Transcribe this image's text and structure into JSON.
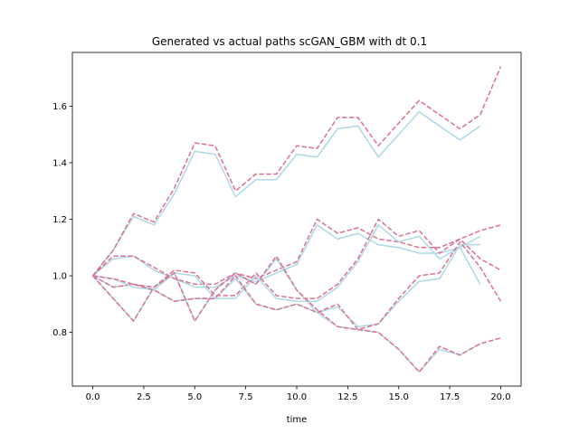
{
  "chart_data": {
    "type": "line",
    "title": "Generated vs actual paths scGAN_GBM with dt 0.1",
    "xlabel": "time",
    "ylabel": "",
    "xlim": [
      -1,
      21
    ],
    "ylim": [
      0.61,
      1.79
    ],
    "xticks": [
      0.0,
      2.5,
      5.0,
      7.5,
      10.0,
      12.5,
      15.0,
      17.5,
      20.0
    ],
    "xtick_labels": [
      "0.0",
      "2.5",
      "5.0",
      "7.5",
      "10.0",
      "12.5",
      "15.0",
      "17.5",
      "20.0"
    ],
    "yticks": [
      0.8,
      1.0,
      1.2,
      1.4,
      1.6
    ],
    "ytick_labels": [
      "0.8",
      "1.0",
      "1.2",
      "1.4",
      "1.6"
    ],
    "grid": false,
    "colors": {
      "generated": "#add8e6",
      "actual": "#db7093"
    },
    "series": [
      {
        "style": "solid",
        "group": "generated",
        "x": [
          0,
          1,
          2,
          3,
          4,
          5,
          6,
          7,
          8,
          9,
          10,
          11,
          12,
          13,
          14,
          15,
          16,
          17,
          18,
          19
        ],
        "y": [
          1.0,
          1.09,
          1.21,
          1.18,
          1.29,
          1.44,
          1.43,
          1.28,
          1.34,
          1.34,
          1.43,
          1.42,
          1.52,
          1.53,
          1.42,
          1.5,
          1.58,
          1.53,
          1.48,
          1.53
        ]
      },
      {
        "style": "dashed",
        "group": "actual",
        "x": [
          0,
          1,
          2,
          3,
          4,
          5,
          6,
          7,
          8,
          9,
          10,
          11,
          12,
          13,
          14,
          15,
          16,
          17,
          18,
          19,
          20
        ],
        "y": [
          1.0,
          1.09,
          1.22,
          1.19,
          1.31,
          1.47,
          1.46,
          1.3,
          1.36,
          1.36,
          1.46,
          1.45,
          1.56,
          1.56,
          1.46,
          1.54,
          1.62,
          1.57,
          1.52,
          1.57,
          1.74
        ]
      },
      {
        "style": "solid",
        "group": "generated",
        "x": [
          0,
          1,
          2,
          3,
          4,
          5,
          6,
          7,
          8,
          9,
          10,
          11,
          12,
          13,
          14,
          15,
          16,
          17,
          18,
          19
        ],
        "y": [
          1.0,
          1.06,
          1.07,
          1.02,
          0.99,
          0.96,
          0.96,
          1.0,
          0.98,
          1.01,
          1.04,
          1.18,
          1.13,
          1.15,
          1.11,
          1.1,
          1.08,
          1.08,
          1.1,
          0.97
        ]
      },
      {
        "style": "dashed",
        "group": "actual",
        "x": [
          0,
          1,
          2,
          3,
          4,
          5,
          6,
          7,
          8,
          9,
          10,
          11,
          12,
          13,
          14,
          15,
          16,
          17,
          18,
          19,
          20
        ],
        "y": [
          1.0,
          1.07,
          1.07,
          1.03,
          0.99,
          0.97,
          0.97,
          1.01,
          0.99,
          1.02,
          1.05,
          1.2,
          1.15,
          1.17,
          1.13,
          1.12,
          1.1,
          1.1,
          1.13,
          1.06,
          1.02
        ]
      },
      {
        "style": "solid",
        "group": "generated",
        "x": [
          0,
          1,
          2,
          3,
          4,
          5,
          6,
          7,
          8,
          9,
          10,
          11,
          12,
          13,
          14,
          15,
          16,
          17,
          18,
          19
        ],
        "y": [
          1.0,
          0.96,
          0.97,
          0.95,
          1.01,
          1.0,
          0.92,
          0.92,
          1.0,
          0.92,
          0.91,
          0.91,
          0.96,
          1.05,
          1.18,
          1.12,
          1.14,
          1.06,
          1.1,
          1.14
        ]
      },
      {
        "style": "dashed",
        "group": "actual",
        "x": [
          0,
          1,
          2,
          3,
          4,
          5,
          6,
          7,
          8,
          9,
          10,
          11,
          12,
          13,
          14,
          15,
          16,
          17,
          18,
          19,
          20
        ],
        "y": [
          1.0,
          0.96,
          0.97,
          0.96,
          1.02,
          1.01,
          0.93,
          0.93,
          1.01,
          0.93,
          0.92,
          0.92,
          0.97,
          1.06,
          1.2,
          1.14,
          1.16,
          1.08,
          1.13,
          1.16,
          1.18
        ]
      },
      {
        "style": "solid",
        "group": "generated",
        "x": [
          0,
          1,
          2,
          3,
          4,
          5,
          6,
          7,
          8,
          9,
          10,
          11,
          12,
          13,
          14,
          15,
          16,
          17,
          18,
          19
        ],
        "y": [
          1.0,
          0.99,
          0.96,
          0.95,
          0.91,
          0.92,
          0.92,
          0.99,
          0.9,
          0.88,
          0.9,
          0.87,
          0.89,
          0.82,
          0.83,
          0.91,
          0.98,
          0.99,
          1.11,
          1.11
        ]
      },
      {
        "style": "dashed",
        "group": "actual",
        "x": [
          0,
          1,
          2,
          3,
          4,
          5,
          6,
          7,
          8,
          9,
          10,
          11,
          12,
          13,
          14,
          15,
          16,
          17,
          18,
          19,
          20
        ],
        "y": [
          1.0,
          0.99,
          0.97,
          0.95,
          0.91,
          0.92,
          0.92,
          1.0,
          0.9,
          0.88,
          0.9,
          0.87,
          0.9,
          0.81,
          0.83,
          0.92,
          1.0,
          1.01,
          1.12,
          1.03,
          0.91
        ]
      },
      {
        "style": "solid",
        "group": "generated",
        "x": [
          0,
          1,
          2,
          3,
          4,
          5,
          6,
          7,
          8,
          9,
          10,
          11,
          12,
          13,
          14,
          15,
          16,
          17,
          18,
          19
        ],
        "y": [
          1.0,
          0.92,
          0.84,
          0.96,
          1.01,
          0.84,
          0.95,
          1.01,
          0.97,
          1.06,
          0.95,
          0.87,
          0.82,
          0.81,
          0.8,
          0.74,
          0.66,
          0.74,
          0.72,
          0.76
        ]
      },
      {
        "style": "dashed",
        "group": "actual",
        "x": [
          0,
          1,
          2,
          3,
          4,
          5,
          6,
          7,
          8,
          9,
          10,
          11,
          12,
          13,
          14,
          15,
          16,
          17,
          18,
          19,
          20
        ],
        "y": [
          1.0,
          0.92,
          0.84,
          0.96,
          1.01,
          0.84,
          0.95,
          1.01,
          0.97,
          1.07,
          0.95,
          0.88,
          0.82,
          0.81,
          0.8,
          0.74,
          0.66,
          0.75,
          0.72,
          0.76,
          0.78
        ]
      }
    ]
  }
}
